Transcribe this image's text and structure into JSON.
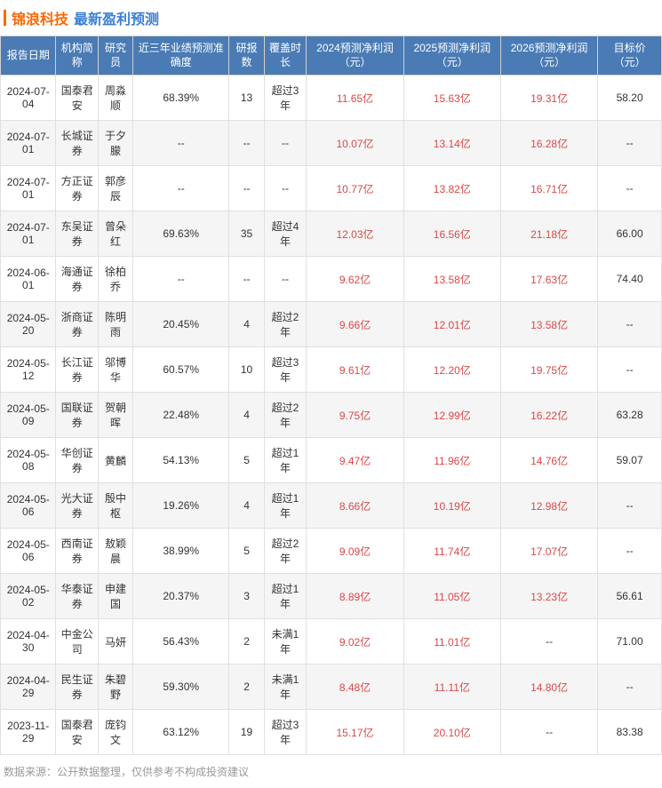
{
  "header": {
    "company": "锦浪科技",
    "section": "最新盈利预测"
  },
  "columns": [
    "报告日期",
    "机构简称",
    "研究员",
    "近三年业绩预测准确度",
    "研报数",
    "覆盖时长",
    "2024预测净利润（元）",
    "2025预测净利润（元）",
    "2026预测净利润（元）",
    "目标价（元）"
  ],
  "rows": [
    {
      "date": "2024-07-04",
      "org": "国泰君安",
      "analyst": "周淼顺",
      "acc": "68.39%",
      "cnt": "13",
      "cov": "超过3年",
      "p24": "11.65亿",
      "p25": "15.63亿",
      "p26": "19.31亿",
      "tgt": "58.20"
    },
    {
      "date": "2024-07-01",
      "org": "长城证券",
      "analyst": "于夕朦",
      "acc": "--",
      "cnt": "--",
      "cov": "--",
      "p24": "10.07亿",
      "p25": "13.14亿",
      "p26": "16.28亿",
      "tgt": "--"
    },
    {
      "date": "2024-07-01",
      "org": "方正证券",
      "analyst": "郭彦辰",
      "acc": "--",
      "cnt": "--",
      "cov": "--",
      "p24": "10.77亿",
      "p25": "13.82亿",
      "p26": "16.71亿",
      "tgt": "--"
    },
    {
      "date": "2024-07-01",
      "org": "东吴证券",
      "analyst": "曾朵红",
      "acc": "69.63%",
      "cnt": "35",
      "cov": "超过4年",
      "p24": "12.03亿",
      "p25": "16.56亿",
      "p26": "21.18亿",
      "tgt": "66.00"
    },
    {
      "date": "2024-06-01",
      "org": "海通证券",
      "analyst": "徐柏乔",
      "acc": "--",
      "cnt": "--",
      "cov": "--",
      "p24": "9.62亿",
      "p25": "13.58亿",
      "p26": "17.63亿",
      "tgt": "74.40"
    },
    {
      "date": "2024-05-20",
      "org": "浙商证券",
      "analyst": "陈明雨",
      "acc": "20.45%",
      "cnt": "4",
      "cov": "超过2年",
      "p24": "9.66亿",
      "p25": "12.01亿",
      "p26": "13.58亿",
      "tgt": "--"
    },
    {
      "date": "2024-05-12",
      "org": "长江证券",
      "analyst": "邬博华",
      "acc": "60.57%",
      "cnt": "10",
      "cov": "超过3年",
      "p24": "9.61亿",
      "p25": "12.20亿",
      "p26": "19.75亿",
      "tgt": "--"
    },
    {
      "date": "2024-05-09",
      "org": "国联证券",
      "analyst": "贺朝晖",
      "acc": "22.48%",
      "cnt": "4",
      "cov": "超过2年",
      "p24": "9.75亿",
      "p25": "12.99亿",
      "p26": "16.22亿",
      "tgt": "63.28"
    },
    {
      "date": "2024-05-08",
      "org": "华创证券",
      "analyst": "黄麟",
      "acc": "54.13%",
      "cnt": "5",
      "cov": "超过1年",
      "p24": "9.47亿",
      "p25": "11.96亿",
      "p26": "14.76亿",
      "tgt": "59.07"
    },
    {
      "date": "2024-05-06",
      "org": "光大证券",
      "analyst": "殷中枢",
      "acc": "19.26%",
      "cnt": "4",
      "cov": "超过1年",
      "p24": "8.66亿",
      "p25": "10.19亿",
      "p26": "12.98亿",
      "tgt": "--"
    },
    {
      "date": "2024-05-06",
      "org": "西南证券",
      "analyst": "敖颖晨",
      "acc": "38.99%",
      "cnt": "5",
      "cov": "超过2年",
      "p24": "9.09亿",
      "p25": "11.74亿",
      "p26": "17.07亿",
      "tgt": "--"
    },
    {
      "date": "2024-05-02",
      "org": "华泰证券",
      "analyst": "申建国",
      "acc": "20.37%",
      "cnt": "3",
      "cov": "超过1年",
      "p24": "8.89亿",
      "p25": "11.05亿",
      "p26": "13.23亿",
      "tgt": "56.61"
    },
    {
      "date": "2024-04-30",
      "org": "中金公司",
      "analyst": "马妍",
      "acc": "56.43%",
      "cnt": "2",
      "cov": "未满1年",
      "p24": "9.02亿",
      "p25": "11.01亿",
      "p26": "--",
      "tgt": "71.00"
    },
    {
      "date": "2024-04-29",
      "org": "民生证券",
      "analyst": "朱碧野",
      "acc": "59.30%",
      "cnt": "2",
      "cov": "未满1年",
      "p24": "8.48亿",
      "p25": "11.11亿",
      "p26": "14.80亿",
      "tgt": "--"
    },
    {
      "date": "2023-11-29",
      "org": "国泰君安",
      "analyst": "庞钧文",
      "acc": "63.12%",
      "cnt": "19",
      "cov": "超过3年",
      "p24": "15.17亿",
      "p25": "20.10亿",
      "p26": "--",
      "tgt": "83.38"
    }
  ],
  "footer": "数据来源：公开数据整理，仅供参考不构成投资建议"
}
